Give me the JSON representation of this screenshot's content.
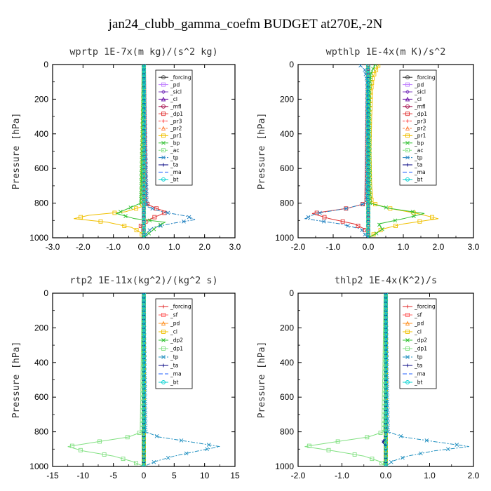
{
  "suptitle": "jan24_clubb_gamma_coefm  BUDGET at270E,-2N",
  "chart_data": [
    {
      "type": "line",
      "title": "wprtp   1E-7x(m kg)/(s^2 kg)",
      "ylabel": "Pressure [hPa]",
      "xlim": [
        -3,
        3
      ],
      "ylim": [
        1000,
        0
      ],
      "y_inverted": true,
      "xticks": [
        -3,
        -2,
        -1,
        0,
        1,
        2,
        3
      ],
      "xtick_labels": [
        "-3.0",
        "-2.0",
        "-1.0",
        "0.0",
        "1.0",
        "2.0",
        "3.0"
      ],
      "yticks": [
        0,
        200,
        400,
        600,
        800,
        1000
      ],
      "yticks_labels": [
        "0",
        "200",
        "400",
        "600",
        "800",
        "1000"
      ],
      "legend_position": "upper-right",
      "series": [
        {
          "name": "_forcing",
          "color": "#303030",
          "marker": "circle",
          "dash": "",
          "p": [
            0,
            1000
          ],
          "v": [
            0,
            0
          ]
        },
        {
          "name": "_pd",
          "color": "#c080ff",
          "marker": "square",
          "dash": "",
          "p": [
            0,
            1000
          ],
          "v": [
            0,
            0
          ]
        },
        {
          "name": "_sicl",
          "color": "#8040c0",
          "marker": "diamond",
          "dash": "",
          "p": [
            0,
            1000
          ],
          "v": [
            0,
            0
          ]
        },
        {
          "name": "_cl",
          "color": "#6000a0",
          "marker": "tri",
          "dash": "",
          "p": [
            0,
            1000
          ],
          "v": [
            0,
            0
          ]
        },
        {
          "name": "_mfl",
          "color": "#a00040",
          "marker": "circle",
          "dash": "",
          "p": [
            0,
            1000
          ],
          "v": [
            0,
            0
          ]
        },
        {
          "name": "_dp1",
          "color": "#e03030",
          "marker": "square",
          "dash": "",
          "p": [
            0,
            800,
            830,
            850,
            870,
            900,
            930,
            960,
            1000
          ],
          "v": [
            0,
            0.05,
            0.4,
            0.75,
            0.5,
            0.1,
            -0.1,
            0,
            0
          ]
        },
        {
          "name": "_pr3",
          "color": "#ff4040",
          "marker": "plus",
          "dash": "3,2",
          "p": [
            0,
            1000
          ],
          "v": [
            0,
            0
          ]
        },
        {
          "name": "_pr2",
          "color": "#ff8040",
          "marker": "tri",
          "dash": "3,2",
          "p": [
            0,
            1000
          ],
          "v": [
            0,
            0
          ]
        },
        {
          "name": "_pr1",
          "color": "#f0c000",
          "marker": "square",
          "dash": "",
          "p": [
            0,
            820,
            850,
            870,
            890,
            910,
            940,
            970,
            1000
          ],
          "v": [
            0,
            -0.05,
            -0.6,
            -1.8,
            -2.3,
            -1.2,
            -0.4,
            -0.1,
            0
          ]
        },
        {
          "name": "_bp",
          "color": "#30c030",
          "marker": "x",
          "dash": "",
          "p": [
            0,
            800,
            830,
            860,
            890,
            910,
            940,
            970,
            1000
          ],
          "v": [
            0,
            -0.1,
            -0.5,
            -0.9,
            -0.3,
            0.7,
            0.4,
            0.2,
            0
          ]
        },
        {
          "name": "_ac",
          "color": "#80e080",
          "marker": "square",
          "dash": "3,2",
          "p": [
            0,
            1000
          ],
          "v": [
            0,
            0
          ]
        },
        {
          "name": "_tp",
          "color": "#2080c0",
          "marker": "x",
          "dash": "6,2,2,2",
          "p": [
            0,
            820,
            850,
            875,
            895,
            915,
            940,
            970,
            1000
          ],
          "v": [
            0,
            0.1,
            0.6,
            1.4,
            1.7,
            1.0,
            0.3,
            0.1,
            0
          ]
        },
        {
          "name": "_ta",
          "color": "#000080",
          "marker": "plus",
          "dash": "",
          "p": [
            0,
            1000
          ],
          "v": [
            0,
            0
          ]
        },
        {
          "name": "_ma",
          "color": "#2060ff",
          "marker": "",
          "dash": "6,3",
          "p": [
            0,
            1000
          ],
          "v": [
            0,
            0
          ]
        },
        {
          "name": "_bt",
          "color": "#00d0d0",
          "marker": "circle",
          "dash": "",
          "p": [
            0,
            1000
          ],
          "v": [
            0,
            0
          ]
        }
      ]
    },
    {
      "type": "line",
      "title": "wpthlp   1E-4x(m K)/s^2",
      "ylabel": "Pressure [hPa]",
      "xlim": [
        -2,
        3
      ],
      "ylim": [
        1000,
        0
      ],
      "y_inverted": true,
      "xticks": [
        -2,
        -1,
        0,
        1,
        2,
        3
      ],
      "xtick_labels": [
        "-2.0",
        "-1.0",
        "0.0",
        "1.0",
        "2.0",
        "3.0"
      ],
      "yticks": [
        0,
        200,
        400,
        600,
        800,
        1000
      ],
      "yticks_labels": [
        "0",
        "200",
        "400",
        "600",
        "800",
        "1000"
      ],
      "legend_position": "upper-right",
      "series": [
        {
          "name": "_forcing",
          "color": "#303030",
          "marker": "circle",
          "dash": "",
          "p": [
            0,
            1000
          ],
          "v": [
            0,
            0
          ]
        },
        {
          "name": "_pd",
          "color": "#c080ff",
          "marker": "square",
          "dash": "",
          "p": [
            0,
            1000
          ],
          "v": [
            0,
            0
          ]
        },
        {
          "name": "_sicl",
          "color": "#8040c0",
          "marker": "diamond",
          "dash": "",
          "p": [
            0,
            1000
          ],
          "v": [
            0,
            0
          ]
        },
        {
          "name": "_cl",
          "color": "#6000a0",
          "marker": "tri",
          "dash": "",
          "p": [
            0,
            1000
          ],
          "v": [
            0,
            0
          ]
        },
        {
          "name": "_mfl",
          "color": "#a00040",
          "marker": "circle",
          "dash": "",
          "p": [
            0,
            1000
          ],
          "v": [
            0,
            0
          ]
        },
        {
          "name": "_dp1",
          "color": "#e03030",
          "marker": "square",
          "dash": "",
          "p": [
            0,
            800,
            830,
            860,
            890,
            920,
            950,
            980,
            1000
          ],
          "v": [
            0,
            -0.05,
            -0.6,
            -1.6,
            -1.1,
            -0.4,
            -0.1,
            0,
            0
          ]
        },
        {
          "name": "_pr3",
          "color": "#ff4040",
          "marker": "plus",
          "dash": "3,2",
          "p": [
            0,
            1000
          ],
          "v": [
            0,
            0
          ]
        },
        {
          "name": "_pr2",
          "color": "#ff8040",
          "marker": "tri",
          "dash": "3,2",
          "p": [
            0,
            1000
          ],
          "v": [
            0,
            0
          ]
        },
        {
          "name": "_pr1",
          "color": "#f0c000",
          "marker": "square",
          "dash": "",
          "p": [
            0,
            40,
            80,
            150,
            300,
            500,
            700,
            800,
            830,
            860,
            890,
            920,
            950,
            1000
          ],
          "v": [
            0.3,
            0.2,
            0.12,
            0.08,
            0.05,
            0.03,
            0.05,
            0.1,
            0.6,
            1.4,
            2.0,
            1.0,
            0.4,
            0
          ]
        },
        {
          "name": "_bp",
          "color": "#30c030",
          "marker": "x",
          "dash": "",
          "p": [
            0,
            50,
            150,
            800,
            830,
            860,
            890,
            920,
            950,
            980,
            1000
          ],
          "v": [
            0.2,
            0.08,
            0.03,
            0.05,
            0.6,
            1.6,
            1.0,
            0.3,
            0.4,
            0.2,
            0
          ]
        },
        {
          "name": "_ac",
          "color": "#80e080",
          "marker": "square",
          "dash": "3,2",
          "p": [
            0,
            1000
          ],
          "v": [
            0,
            0
          ]
        },
        {
          "name": "_tp",
          "color": "#2080c0",
          "marker": "x",
          "dash": "6,2,2,2",
          "p": [
            0,
            30,
            100,
            800,
            830,
            860,
            890,
            920,
            950,
            980,
            1000
          ],
          "v": [
            -0.25,
            -0.1,
            -0.03,
            -0.05,
            -0.6,
            -1.5,
            -1.8,
            -0.8,
            -0.2,
            -0.1,
            0
          ]
        },
        {
          "name": "_ta",
          "color": "#000080",
          "marker": "plus",
          "dash": "",
          "p": [
            0,
            1000
          ],
          "v": [
            0,
            0
          ]
        },
        {
          "name": "_ma",
          "color": "#2060ff",
          "marker": "",
          "dash": "6,3",
          "p": [
            0,
            1000
          ],
          "v": [
            0,
            0
          ]
        },
        {
          "name": "_bt",
          "color": "#00d0d0",
          "marker": "circle",
          "dash": "",
          "p": [
            0,
            1000
          ],
          "v": [
            0,
            0
          ]
        }
      ]
    },
    {
      "type": "line",
      "title": "rtp2   1E-11x(kg^2)/(kg^2 s)",
      "ylabel": "Pressure [hPa]",
      "xlim": [
        -15,
        15
      ],
      "ylim": [
        1000,
        0
      ],
      "y_inverted": true,
      "xticks": [
        -15,
        -10,
        -5,
        0,
        5,
        10,
        15
      ],
      "xtick_labels": [
        "-15",
        "-10",
        "-5",
        "0",
        "5",
        "10",
        "15"
      ],
      "yticks": [
        0,
        200,
        400,
        600,
        800,
        1000
      ],
      "yticks_labels": [
        "0",
        "200",
        "400",
        "600",
        "800",
        "1000"
      ],
      "legend_position": "upper-right",
      "series": [
        {
          "name": "_forcing",
          "color": "#e02020",
          "marker": "plus",
          "dash": "",
          "p": [
            0,
            1000
          ],
          "v": [
            0,
            0
          ]
        },
        {
          "name": "_sf",
          "color": "#ff6060",
          "marker": "square",
          "dash": "",
          "p": [
            0,
            1000
          ],
          "v": [
            0,
            0
          ]
        },
        {
          "name": "_pd",
          "color": "#ff9020",
          "marker": "tri",
          "dash": "",
          "p": [
            0,
            1000
          ],
          "v": [
            0,
            0
          ]
        },
        {
          "name": "_cl",
          "color": "#f0c000",
          "marker": "square",
          "dash": "",
          "p": [
            0,
            1000
          ],
          "v": [
            0,
            0
          ]
        },
        {
          "name": "_dp2",
          "color": "#30c030",
          "marker": "x",
          "dash": "",
          "p": [
            0,
            1000
          ],
          "v": [
            0,
            0
          ]
        },
        {
          "name": "_dp1",
          "color": "#80e080",
          "marker": "square",
          "dash": "",
          "p": [
            0,
            800,
            830,
            860,
            885,
            910,
            940,
            970,
            1000
          ],
          "v": [
            0,
            -0.3,
            -2.5,
            -8,
            -12.5,
            -10,
            -5,
            -2,
            0
          ]
        },
        {
          "name": "_tp",
          "color": "#2090c0",
          "marker": "x",
          "dash": "6,2,2,2",
          "p": [
            0,
            800,
            830,
            860,
            885,
            910,
            940,
            970,
            1000
          ],
          "v": [
            0,
            0.3,
            2.5,
            8,
            12.5,
            9,
            5,
            2,
            0
          ]
        },
        {
          "name": "_ta",
          "color": "#000080",
          "marker": "plus",
          "dash": "",
          "p": [
            0,
            1000
          ],
          "v": [
            0,
            0
          ]
        },
        {
          "name": "_ma",
          "color": "#2060ff",
          "marker": "",
          "dash": "6,3",
          "p": [
            0,
            1000
          ],
          "v": [
            0,
            0
          ]
        },
        {
          "name": "_bt",
          "color": "#00d0d0",
          "marker": "circle",
          "dash": "",
          "p": [
            0,
            1000
          ],
          "v": [
            0,
            0
          ]
        }
      ]
    },
    {
      "type": "line",
      "title": "thlp2   1E-4x(K^2)/s",
      "ylabel": "Pressure [hPa]",
      "xlim": [
        -2,
        2
      ],
      "ylim": [
        1000,
        0
      ],
      "y_inverted": true,
      "xticks": [
        -2,
        -1,
        0,
        1,
        2
      ],
      "xtick_labels": [
        "-2.0",
        "-1.0",
        "0.0",
        "1.0",
        "2.0"
      ],
      "yticks": [
        0,
        200,
        400,
        600,
        800,
        1000
      ],
      "yticks_labels": [
        "0",
        "200",
        "400",
        "600",
        "800",
        "1000"
      ],
      "legend_position": "upper-right",
      "series": [
        {
          "name": "_forcing",
          "color": "#e02020",
          "marker": "plus",
          "dash": "",
          "p": [
            0,
            1000
          ],
          "v": [
            0,
            0
          ]
        },
        {
          "name": "_sf",
          "color": "#ff6060",
          "marker": "square",
          "dash": "",
          "p": [
            0,
            1000
          ],
          "v": [
            0,
            0
          ]
        },
        {
          "name": "_pd",
          "color": "#ff9020",
          "marker": "tri",
          "dash": "",
          "p": [
            0,
            1000
          ],
          "v": [
            0,
            0
          ]
        },
        {
          "name": "_cl",
          "color": "#f0c000",
          "marker": "square",
          "dash": "",
          "p": [
            0,
            1000
          ],
          "v": [
            0,
            0
          ]
        },
        {
          "name": "_dp2",
          "color": "#30c030",
          "marker": "x",
          "dash": "",
          "p": [
            0,
            1000
          ],
          "v": [
            0,
            0
          ]
        },
        {
          "name": "_dp1",
          "color": "#80e080",
          "marker": "square",
          "dash": "",
          "p": [
            0,
            800,
            830,
            860,
            885,
            910,
            940,
            970,
            1000
          ],
          "v": [
            0,
            -0.05,
            -0.4,
            -1.2,
            -1.85,
            -1.2,
            -0.5,
            -0.15,
            0
          ]
        },
        {
          "name": "_tp",
          "color": "#2090c0",
          "marker": "x",
          "dash": "6,2,2,2",
          "p": [
            0,
            800,
            830,
            860,
            885,
            910,
            940,
            970,
            1000
          ],
          "v": [
            0,
            0.05,
            0.4,
            1.2,
            1.9,
            1.1,
            0.5,
            0.15,
            0
          ]
        },
        {
          "name": "_ta",
          "color": "#000080",
          "marker": "plus",
          "dash": "",
          "p": [
            0,
            840,
            860,
            880,
            1000
          ],
          "v": [
            0,
            0,
            -0.08,
            0,
            0
          ]
        },
        {
          "name": "_ma",
          "color": "#2060ff",
          "marker": "",
          "dash": "6,3",
          "p": [
            0,
            1000
          ],
          "v": [
            0,
            0
          ]
        },
        {
          "name": "_bt",
          "color": "#00d0d0",
          "marker": "circle",
          "dash": "",
          "p": [
            0,
            1000
          ],
          "v": [
            0,
            0
          ]
        }
      ]
    }
  ]
}
